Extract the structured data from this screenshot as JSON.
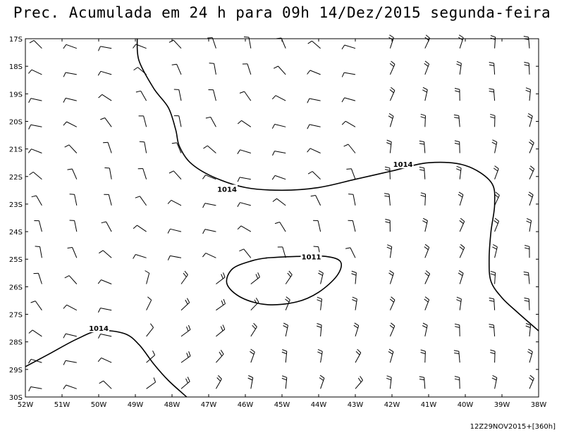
{
  "title": "Prec. Acumulada em 24 h para 09h 14/Dez/2015 segunda-feira",
  "footer": "12Z29NOV2015+[360h]",
  "map": {
    "lon_range": [
      -52,
      -38
    ],
    "lat_range": [
      -30,
      -17
    ],
    "x_ticks": [
      "52W",
      "51W",
      "50W",
      "49W",
      "48W",
      "47W",
      "46W",
      "45W",
      "44W",
      "43W",
      "42W",
      "41W",
      "40W",
      "39W",
      "38W"
    ],
    "y_ticks": [
      "17S",
      "18S",
      "19S",
      "20S",
      "21S",
      "22S",
      "23S",
      "24S",
      "25S",
      "26S",
      "27S",
      "28S",
      "29S",
      "30S"
    ],
    "contours": [
      {
        "label": "1014",
        "level": 1014,
        "points": [
          [
            -48.95,
            -17
          ],
          [
            -48.9,
            -17.8
          ],
          [
            -48.5,
            -18.8
          ],
          [
            -48.1,
            -19.5
          ],
          [
            -47.9,
            -20.3
          ],
          [
            -47.8,
            -20.9
          ],
          [
            -47.5,
            -21.5
          ],
          [
            -46.9,
            -22
          ],
          [
            -46,
            -22.4
          ],
          [
            -45,
            -22.5
          ],
          [
            -44,
            -22.4
          ],
          [
            -43,
            -22.1
          ],
          [
            -42,
            -21.8
          ],
          [
            -41,
            -21.5
          ],
          [
            -40,
            -21.6
          ],
          [
            -39.3,
            -22.2
          ],
          [
            -39.2,
            -23
          ],
          [
            -39.3,
            -24
          ],
          [
            -39.35,
            -25
          ],
          [
            -39.3,
            -25.8
          ],
          [
            -39,
            -26.4
          ],
          [
            -38.6,
            -26.9
          ],
          [
            -38,
            -27.6
          ]
        ]
      },
      {
        "label": "1014",
        "level": 1014,
        "points": [
          [
            -52,
            -28.9
          ],
          [
            -51.3,
            -28.4
          ],
          [
            -50.6,
            -27.9
          ],
          [
            -50,
            -27.6
          ],
          [
            -49.3,
            -27.7
          ],
          [
            -48.9,
            -28.1
          ],
          [
            -48.5,
            -28.8
          ],
          [
            -48.1,
            -29.4
          ],
          [
            -47.6,
            -30
          ]
        ]
      },
      {
        "label": "1011",
        "level": 1011,
        "points": [
          [
            -45.4,
            -24.95
          ],
          [
            -44.6,
            -24.9
          ],
          [
            -43.8,
            -24.9
          ],
          [
            -43.4,
            -25.1
          ],
          [
            -43.5,
            -25.6
          ],
          [
            -44,
            -26.2
          ],
          [
            -44.6,
            -26.55
          ],
          [
            -45.4,
            -26.65
          ],
          [
            -46.1,
            -26.4
          ],
          [
            -46.5,
            -25.9
          ],
          [
            -46.35,
            -25.35
          ],
          [
            -45.8,
            -25.05
          ],
          [
            -45.4,
            -24.95
          ]
        ]
      }
    ]
  }
}
